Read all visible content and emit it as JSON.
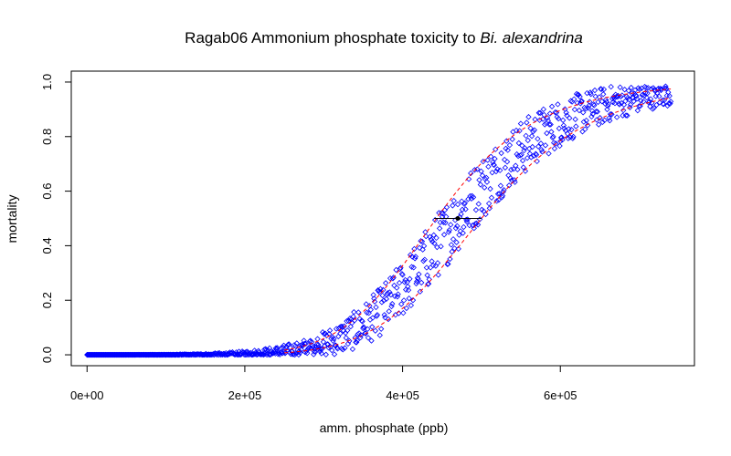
{
  "chart_data": {
    "type": "scatter",
    "title": "Ragab06 Ammonium phosphate toxicity to ",
    "title_italic": "Bi. alexandrina",
    "xlabel": "amm. phosphate (ppb)",
    "ylabel": "mortality",
    "xlim": [
      -20000,
      770000
    ],
    "ylim": [
      -0.04,
      1.04
    ],
    "x_ticks": [
      0,
      200000,
      400000,
      600000
    ],
    "x_tick_labels": [
      "0e+00",
      "2e+05",
      "4e+05",
      "6e+05"
    ],
    "y_ticks": [
      0.0,
      0.2,
      0.4,
      0.6,
      0.8,
      1.0
    ],
    "y_tick_labels": [
      "0.0",
      "0.2",
      "0.4",
      "0.6",
      "0.8",
      "1.0"
    ],
    "grid": false,
    "colors": {
      "points": "#0000ff",
      "bounds": "#ff0000",
      "marker": "#000000"
    },
    "model": {
      "kind": "log-logistic",
      "ec50": 470000,
      "slope": 7.1,
      "x_min": 0,
      "x_max": 740000
    },
    "lower_bound": {
      "ec50": 500000,
      "slope": 7.1
    },
    "upper_bound": {
      "ec50": 443000,
      "slope": 7.1
    },
    "ec50_marker": {
      "x": 470000,
      "y": 0.5,
      "lower": 440000,
      "upper": 500000
    },
    "points_note_count": 900
  }
}
